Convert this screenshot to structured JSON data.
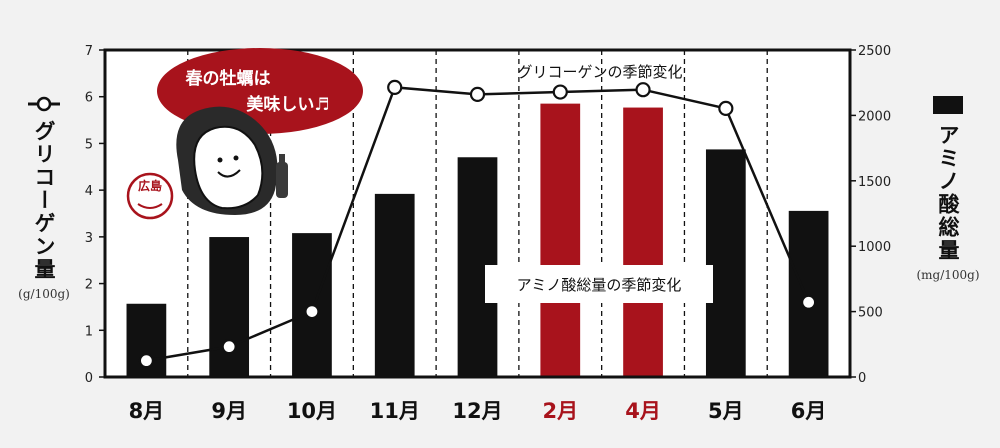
{
  "chart_data": {
    "type": "bar+line",
    "categories": [
      "8月",
      "9月",
      "10月",
      "11月",
      "12月",
      "2月",
      "4月",
      "5月",
      "6月"
    ],
    "highlight_categories": [
      "2月",
      "4月"
    ],
    "series": [
      {
        "name": "アミノ酸総量の季節変化",
        "type": "bar",
        "axis": "right",
        "values": [
          560,
          1070,
          1100,
          1400,
          1680,
          2090,
          2060,
          1740,
          1270
        ]
      },
      {
        "name": "グリコーゲンの季節変化",
        "type": "line",
        "axis": "left",
        "values": [
          0.35,
          0.65,
          1.4,
          6.2,
          6.05,
          6.1,
          6.15,
          5.75,
          1.6
        ]
      }
    ],
    "y_left": {
      "label": "グリコーゲン量",
      "unit": "(g/100g)",
      "lim": [
        0,
        7
      ],
      "ticks": [
        "0",
        "1",
        "2",
        "3",
        "4",
        "5",
        "6",
        "7"
      ]
    },
    "y_right": {
      "label": "アミノ酸総量",
      "unit": "(mg/100g)",
      "lim": [
        0,
        2500
      ],
      "ticks": [
        "0",
        "500",
        "1000",
        "1500",
        "2000",
        "2500"
      ]
    },
    "grid": "vertical dashed",
    "annotation": {
      "bubble": [
        "春の牡蠣は",
        "美味しい♬"
      ],
      "stamp": "広島"
    }
  },
  "colors": {
    "bar": "#111111",
    "highlight_bar": "#a8131c",
    "line": "#111111",
    "bubble": "#a8131c",
    "frame": "#111111",
    "plot_bg": "#ffffff",
    "page_bg": "#f2f2f2"
  },
  "icons": {
    "mascot": "oyster-mascot-icon"
  }
}
